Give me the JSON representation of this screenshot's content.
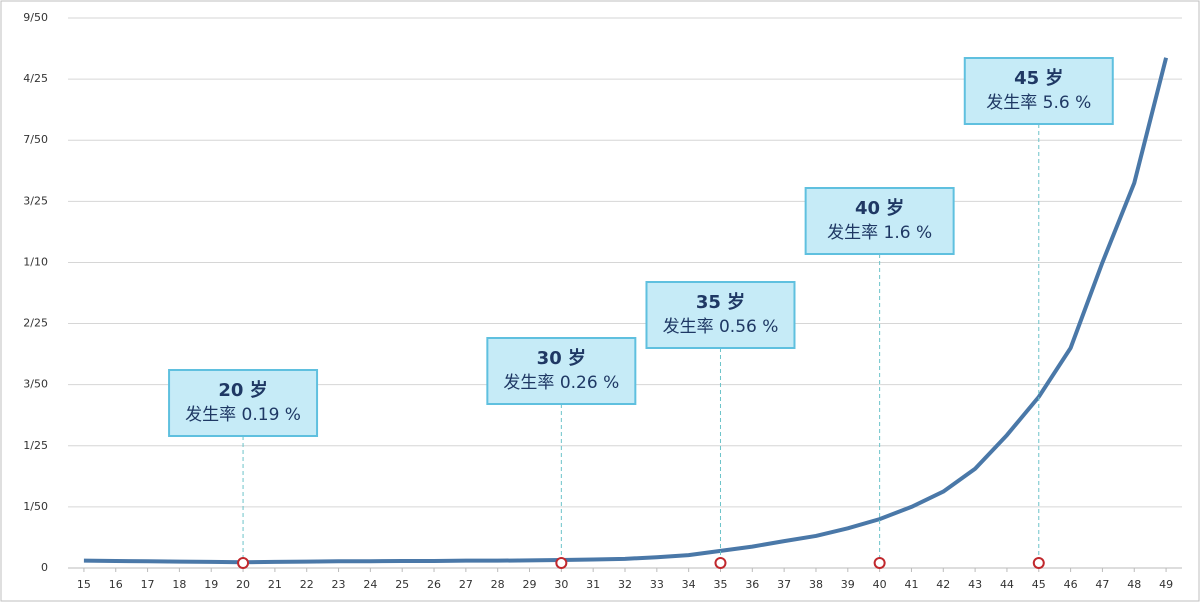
{
  "chart_data": {
    "type": "line",
    "x": [
      15,
      16,
      17,
      18,
      19,
      20,
      21,
      22,
      23,
      24,
      25,
      26,
      27,
      28,
      29,
      30,
      31,
      32,
      33,
      34,
      35,
      36,
      37,
      38,
      39,
      40,
      41,
      42,
      43,
      44,
      45,
      46,
      47,
      48,
      49
    ],
    "series": [
      {
        "color": "#4a78a8",
        "values": [
          0.0024,
          0.0023,
          0.0022,
          0.0021,
          0.002,
          0.0019,
          0.002,
          0.0021,
          0.0022,
          0.0022,
          0.0023,
          0.0023,
          0.0024,
          0.0024,
          0.0025,
          0.0026,
          0.0028,
          0.003,
          0.0035,
          0.0042,
          0.0056,
          0.007,
          0.0088,
          0.0105,
          0.013,
          0.016,
          0.02,
          0.025,
          0.0325,
          0.0435,
          0.056,
          0.072,
          0.1,
          0.126,
          0.167
        ]
      }
    ],
    "xlim": [
      14.5,
      49.5
    ],
    "xticks": [
      15,
      16,
      17,
      18,
      19,
      20,
      21,
      22,
      23,
      24,
      25,
      26,
      27,
      28,
      29,
      30,
      31,
      32,
      33,
      34,
      35,
      36,
      37,
      38,
      39,
      40,
      41,
      42,
      43,
      44,
      45,
      46,
      47,
      48,
      49
    ],
    "ylim": [
      0,
      0.18
    ],
    "yticks": [
      0,
      {
        "value": 0.02,
        "label": "1/50"
      },
      {
        "value": 0.04,
        "label": "1/25"
      },
      {
        "value": 0.06,
        "label": "3/50"
      },
      {
        "value": 0.08,
        "label": "2/25"
      },
      {
        "value": 0.1,
        "label": "1/10"
      },
      {
        "value": 0.12,
        "label": "3/25"
      },
      {
        "value": 0.14,
        "label": "7/50"
      },
      {
        "value": 0.16,
        "label": "4/25"
      },
      {
        "value": 0.18,
        "label": "9/50"
      }
    ],
    "grid": true,
    "annotations": [
      {
        "x": 20,
        "title": "20 岁",
        "text": "发生率 0.19 %"
      },
      {
        "x": 30,
        "title": "30 岁",
        "text": "发生率 0.26 %"
      },
      {
        "x": 35,
        "title": "35 岁",
        "text": "发生率 0.56 %"
      },
      {
        "x": 40,
        "title": "40 岁",
        "text": "发生率 1.6 %"
      },
      {
        "x": 45,
        "title": "45 岁",
        "text": "发生率 5.6 %"
      }
    ]
  }
}
